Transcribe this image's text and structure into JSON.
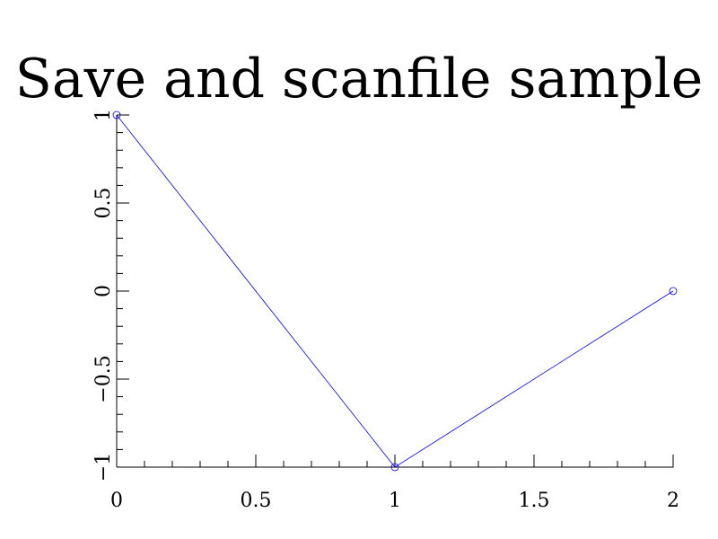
{
  "chart_data": {
    "type": "line",
    "title": "Save and scanfile sample",
    "xlabel": "",
    "ylabel": "",
    "xlim": [
      0,
      2
    ],
    "ylim": [
      -1,
      1
    ],
    "x_ticks": [
      0,
      0.5,
      1,
      1.5,
      2
    ],
    "x_tick_labels": [
      "0",
      "0.5",
      "1",
      "1.5",
      "2"
    ],
    "y_ticks": [
      -1,
      -0.5,
      0,
      0.5,
      1
    ],
    "y_tick_labels": [
      "−1",
      "−0.5",
      "0",
      "0.5",
      "1"
    ],
    "grid": false,
    "series": [
      {
        "color": "#0000ff",
        "marker": "circle",
        "x": [
          0,
          1,
          2
        ],
        "y": [
          1,
          -1,
          0
        ]
      }
    ]
  }
}
